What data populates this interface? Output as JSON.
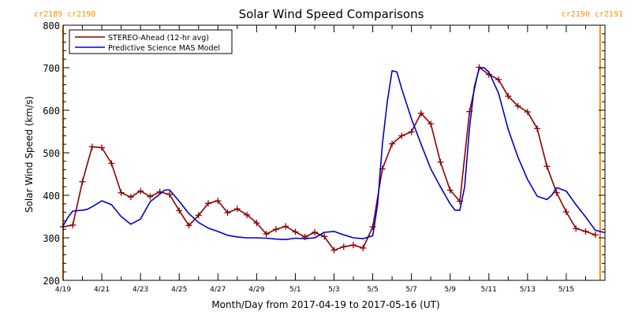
{
  "chart_data": {
    "type": "line",
    "title": "Solar Wind Speed Comparisons",
    "xlabel": "Month/Day from 2017-04-19 to 2017-05-16 (UT)",
    "ylabel": "Solar Wind Speed (km/s)",
    "xlim": [
      "2017-04-19",
      "2017-05-17"
    ],
    "ylim": [
      200,
      800
    ],
    "x_ticks": [
      "4/19",
      "4/21",
      "4/23",
      "4/25",
      "4/27",
      "4/29",
      "5/1",
      "5/3",
      "5/5",
      "5/7",
      "5/9",
      "5/11",
      "5/13",
      "5/15"
    ],
    "y_ticks": [
      200,
      300,
      400,
      500,
      600,
      700,
      800
    ],
    "grid": false,
    "legend_position": "top-left",
    "carrington_labels": [
      {
        "text": "cr2189 cr2190",
        "x": "2017-04-19",
        "color": "#ff8c00"
      },
      {
        "text": "cr2190 cr2191",
        "x": "2017-05-16 18:00",
        "color": "#ff8c00"
      }
    ],
    "series": [
      {
        "name": "STEREO-Ahead (12-hr avg)",
        "color": "#8b0000",
        "marker": "+",
        "points": [
          [
            "2017-04-19 00:00",
            326
          ],
          [
            "2017-04-19 12:00",
            330
          ],
          [
            "2017-04-20 00:00",
            432
          ],
          [
            "2017-04-20 12:00",
            514
          ],
          [
            "2017-04-21 00:00",
            512
          ],
          [
            "2017-04-21 12:00",
            475
          ],
          [
            "2017-04-22 00:00",
            406
          ],
          [
            "2017-04-22 12:00",
            396
          ],
          [
            "2017-04-23 00:00",
            410
          ],
          [
            "2017-04-23 12:00",
            397
          ],
          [
            "2017-04-24 00:00",
            408
          ],
          [
            "2017-04-24 12:00",
            402
          ],
          [
            "2017-04-25 00:00",
            364
          ],
          [
            "2017-04-25 12:00",
            329
          ],
          [
            "2017-04-26 00:00",
            353
          ],
          [
            "2017-04-26 12:00",
            381
          ],
          [
            "2017-04-27 00:00",
            387
          ],
          [
            "2017-04-27 12:00",
            359
          ],
          [
            "2017-04-28 00:00",
            368
          ],
          [
            "2017-04-28 12:00",
            354
          ],
          [
            "2017-04-29 00:00",
            335
          ],
          [
            "2017-04-29 12:00",
            309
          ],
          [
            "2017-04-30 00:00",
            320
          ],
          [
            "2017-04-30 12:00",
            327
          ],
          [
            "2017-05-01 00:00",
            314
          ],
          [
            "2017-05-01 12:00",
            302
          ],
          [
            "2017-05-02 00:00",
            313
          ],
          [
            "2017-05-02 12:00",
            303
          ],
          [
            "2017-05-03 00:00",
            271
          ],
          [
            "2017-05-03 12:00",
            279
          ],
          [
            "2017-05-04 00:00",
            283
          ],
          [
            "2017-05-04 12:00",
            276
          ],
          [
            "2017-05-05 00:00",
            326
          ],
          [
            "2017-05-05 12:00",
            462
          ],
          [
            "2017-05-06 00:00",
            521
          ],
          [
            "2017-05-06 12:00",
            540
          ],
          [
            "2017-05-07 00:00",
            549
          ],
          [
            "2017-05-07 12:00",
            593
          ],
          [
            "2017-05-08 00:00",
            568
          ],
          [
            "2017-05-08 12:00",
            478
          ],
          [
            "2017-05-09 00:00",
            412
          ],
          [
            "2017-05-09 12:00",
            386
          ],
          [
            "2017-05-10 00:00",
            597
          ],
          [
            "2017-05-10 12:00",
            701
          ],
          [
            "2017-05-11 00:00",
            684
          ],
          [
            "2017-05-11 12:00",
            672
          ],
          [
            "2017-05-12 00:00",
            633
          ],
          [
            "2017-05-12 12:00",
            610
          ],
          [
            "2017-05-13 00:00",
            596
          ],
          [
            "2017-05-13 12:00",
            557
          ],
          [
            "2017-05-14 00:00",
            468
          ],
          [
            "2017-05-14 12:00",
            406
          ],
          [
            "2017-05-15 00:00",
            361
          ],
          [
            "2017-05-15 12:00",
            322
          ],
          [
            "2017-05-16 00:00",
            315
          ],
          [
            "2017-05-16 12:00",
            307
          ]
        ]
      },
      {
        "name": "Predictive Science MAS Model",
        "color": "#0000cd",
        "marker": "",
        "points": [
          [
            "2017-04-19 00:00",
            328
          ],
          [
            "2017-04-19 06:00",
            348
          ],
          [
            "2017-04-19 12:00",
            363
          ],
          [
            "2017-04-20 00:00",
            365
          ],
          [
            "2017-04-20 06:00",
            367
          ],
          [
            "2017-04-20 12:00",
            373
          ],
          [
            "2017-04-21 00:00",
            387
          ],
          [
            "2017-04-21 12:00",
            378
          ],
          [
            "2017-04-22 00:00",
            350
          ],
          [
            "2017-04-22 12:00",
            332
          ],
          [
            "2017-04-23 00:00",
            344
          ],
          [
            "2017-04-23 12:00",
            385
          ],
          [
            "2017-04-24 00:00",
            403
          ],
          [
            "2017-04-24 06:00",
            412
          ],
          [
            "2017-04-24 12:00",
            413
          ],
          [
            "2017-04-25 00:00",
            386
          ],
          [
            "2017-04-25 12:00",
            357
          ],
          [
            "2017-04-26 00:00",
            336
          ],
          [
            "2017-04-26 12:00",
            323
          ],
          [
            "2017-04-27 00:00",
            315
          ],
          [
            "2017-04-27 12:00",
            306
          ],
          [
            "2017-04-28 00:00",
            302
          ],
          [
            "2017-04-28 12:00",
            300
          ],
          [
            "2017-04-29 00:00",
            300
          ],
          [
            "2017-04-29 12:00",
            299
          ],
          [
            "2017-04-30 00:00",
            297
          ],
          [
            "2017-04-30 12:00",
            296
          ],
          [
            "2017-05-01 00:00",
            299
          ],
          [
            "2017-05-01 12:00",
            298
          ],
          [
            "2017-05-02 00:00",
            300
          ],
          [
            "2017-05-02 12:00",
            313
          ],
          [
            "2017-05-03 00:00",
            315
          ],
          [
            "2017-05-03 12:00",
            307
          ],
          [
            "2017-05-04 00:00",
            300
          ],
          [
            "2017-05-04 12:00",
            298
          ],
          [
            "2017-05-05 00:00",
            305
          ],
          [
            "2017-05-05 06:00",
            378
          ],
          [
            "2017-05-05 12:00",
            520
          ],
          [
            "2017-05-05 18:00",
            620
          ],
          [
            "2017-05-06 00:00",
            693
          ],
          [
            "2017-05-06 06:00",
            690
          ],
          [
            "2017-05-06 12:00",
            650
          ],
          [
            "2017-05-07 00:00",
            580
          ],
          [
            "2017-05-07 12:00",
            520
          ],
          [
            "2017-05-08 00:00",
            462
          ],
          [
            "2017-05-08 12:00",
            420
          ],
          [
            "2017-05-09 00:00",
            380
          ],
          [
            "2017-05-09 06:00",
            365
          ],
          [
            "2017-05-09 12:00",
            365
          ],
          [
            "2017-05-09 18:00",
            420
          ],
          [
            "2017-05-10 00:00",
            560
          ],
          [
            "2017-05-10 06:00",
            655
          ],
          [
            "2017-05-10 12:00",
            698
          ],
          [
            "2017-05-10 18:00",
            700
          ],
          [
            "2017-05-11 00:00",
            690
          ],
          [
            "2017-05-11 12:00",
            640
          ],
          [
            "2017-05-12 00:00",
            555
          ],
          [
            "2017-05-12 12:00",
            490
          ],
          [
            "2017-05-13 00:00",
            437
          ],
          [
            "2017-05-13 12:00",
            398
          ],
          [
            "2017-05-14 00:00",
            390
          ],
          [
            "2017-05-14 06:00",
            400
          ],
          [
            "2017-05-14 12:00",
            418
          ],
          [
            "2017-05-15 00:00",
            410
          ],
          [
            "2017-05-15 12:00",
            378
          ],
          [
            "2017-05-16 00:00",
            349
          ],
          [
            "2017-05-16 12:00",
            318
          ],
          [
            "2017-05-17 00:00",
            312
          ]
        ]
      }
    ]
  }
}
